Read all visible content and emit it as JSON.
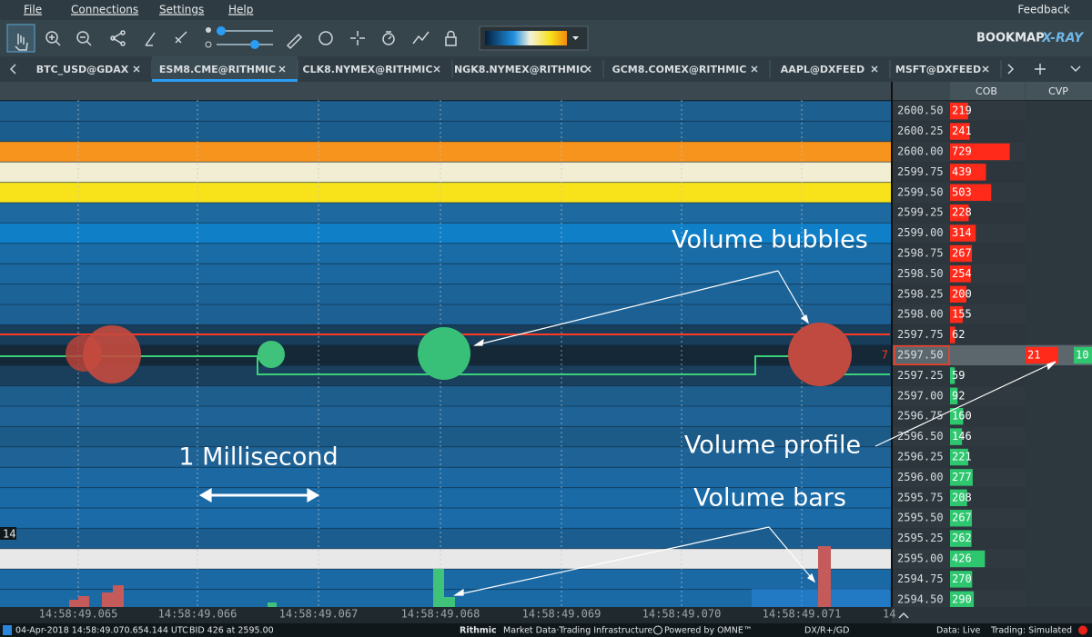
{
  "menu": [
    "File",
    "Connections",
    "Settings",
    "Help"
  ],
  "feedback": "Feedback",
  "logo": {
    "brand": "BOOKMAP",
    "product": "X-RAY"
  },
  "tabs": [
    {
      "label": "BTC_USD@GDAX",
      "active": false
    },
    {
      "label": "ESM8.CME@RITHMIC",
      "active": true
    },
    {
      "label": "CLK8.NYMEX@RITHMIC",
      "active": false
    },
    {
      "label": "NGK8.NYMEX@RITHMIC",
      "active": false
    },
    {
      "label": "GCM8.COMEX@RITHMIC",
      "active": false
    },
    {
      "label": "AAPL@DXFEED",
      "active": false
    },
    {
      "label": "MSFT@DXFEED",
      "active": false
    }
  ],
  "ladder": {
    "headers": [
      "COB",
      "CVP"
    ],
    "rows": [
      {
        "price": "2600.50",
        "cob": 219,
        "side": "ask"
      },
      {
        "price": "2600.25",
        "cob": 241,
        "side": "ask"
      },
      {
        "price": "2600.00",
        "cob": 729,
        "side": "ask"
      },
      {
        "price": "2599.75",
        "cob": 439,
        "side": "ask"
      },
      {
        "price": "2599.50",
        "cob": 503,
        "side": "ask"
      },
      {
        "price": "2599.25",
        "cob": 228,
        "side": "ask"
      },
      {
        "price": "2599.00",
        "cob": 314,
        "side": "ask"
      },
      {
        "price": "2598.75",
        "cob": 267,
        "side": "ask"
      },
      {
        "price": "2598.50",
        "cob": 254,
        "side": "ask"
      },
      {
        "price": "2598.25",
        "cob": 200,
        "side": "ask"
      },
      {
        "price": "2598.00",
        "cob": 155,
        "side": "ask"
      },
      {
        "price": "2597.75",
        "cob": 62,
        "side": "ask"
      },
      {
        "price": "2597.50",
        "cob": null,
        "side": "last",
        "marker": "7",
        "cvp_sell": 21,
        "cvp_buy": 10
      },
      {
        "price": "2597.25",
        "cob": 59,
        "side": "bid"
      },
      {
        "price": "2597.00",
        "cob": 92,
        "side": "bid"
      },
      {
        "price": "2596.75",
        "cob": 160,
        "side": "bid"
      },
      {
        "price": "2596.50",
        "cob": 146,
        "side": "bid"
      },
      {
        "price": "2596.25",
        "cob": 221,
        "side": "bid"
      },
      {
        "price": "2596.00",
        "cob": 277,
        "side": "bid"
      },
      {
        "price": "2595.75",
        "cob": 208,
        "side": "bid"
      },
      {
        "price": "2595.50",
        "cob": 267,
        "side": "bid"
      },
      {
        "price": "2595.25",
        "cob": 262,
        "side": "bid"
      },
      {
        "price": "2595.00",
        "cob": 426,
        "side": "bid"
      },
      {
        "price": "2594.75",
        "cob": 270,
        "side": "bid"
      },
      {
        "price": "2594.50",
        "cob": 290,
        "side": "bid"
      }
    ]
  },
  "time_axis": [
    "14:58:49.065",
    "14:58:49.066",
    "14:58:49.067",
    "14:58:49.068",
    "14:58:49.069",
    "14:58:49.070",
    "14:58:49.071",
    "14"
  ],
  "volume_marker": "14",
  "annotations": {
    "bubbles": "Volume bubbles",
    "profile": "Volume profile",
    "millisecond": "1 Millisecond",
    "bars": "Volume bars"
  },
  "status": {
    "timestamp": "04-Apr-2018 14:58:49.070.654.144 UTC",
    "bid": "BID 426 at 2595.00",
    "rithmic": "Rithmic",
    "rithmic_tagline": "Market Data·Trading Infrastructure",
    "omne": "Powered by OMNE™",
    "feeds": "DX/R+/GD",
    "data": "Data: Live",
    "trading": "Trading: Simulated"
  }
}
